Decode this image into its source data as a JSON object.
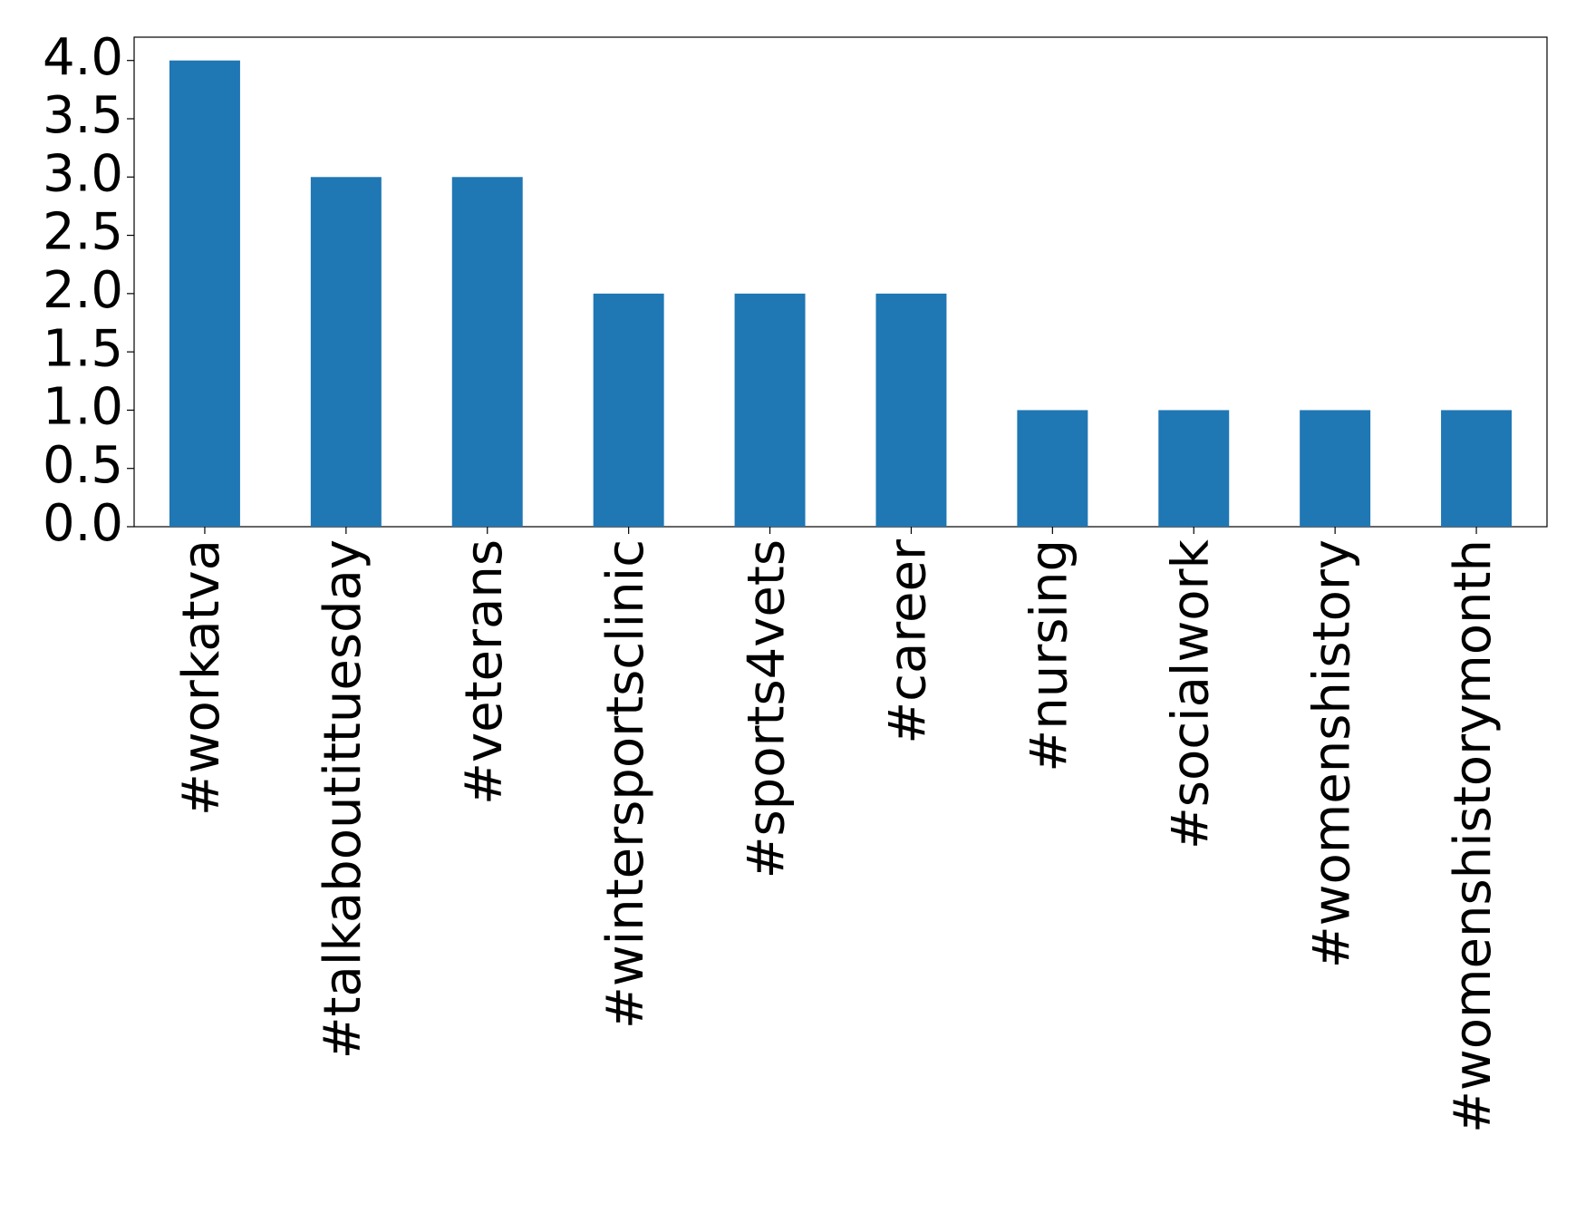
{
  "chart_data": {
    "type": "bar",
    "categories": [
      "#workatva",
      "#talkaboutittuesday",
      "#veterans",
      "#wintersportsclinic",
      "#sports4vets",
      "#career",
      "#nursing",
      "#socialwork",
      "#womenshistory",
      "#womenshistorymonth"
    ],
    "values": [
      4,
      3,
      3,
      2,
      2,
      2,
      1,
      1,
      1,
      1
    ],
    "color": "#1f77b4",
    "ylim": [
      0,
      4.2
    ],
    "yticks": [
      {
        "value": 0,
        "label": "0.0"
      },
      0.5,
      {
        "value": 1,
        "label": "1.0"
      },
      1.5,
      {
        "value": 2,
        "label": "2.0"
      },
      2.5,
      {
        "value": 3,
        "label": "3.0"
      },
      3.5,
      {
        "value": 4,
        "label": "4.0"
      }
    ],
    "grid": false
  }
}
